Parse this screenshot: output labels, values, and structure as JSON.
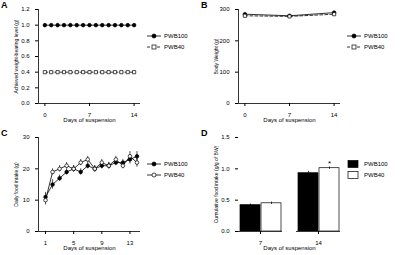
{
  "chart_data": [
    {
      "type": "line",
      "title": "A",
      "xlabel": "Days of suspension",
      "ylabel": "Achieved weight-bearing level (g)",
      "x": [
        0,
        1,
        2,
        3,
        4,
        5,
        6,
        7,
        8,
        9,
        10,
        11,
        12,
        13,
        14
      ],
      "xlim": [
        -1,
        15
      ],
      "xticks": [
        0,
        7,
        14
      ],
      "ylim": [
        0,
        1.2
      ],
      "yticks": [
        {
          "value": 0,
          "label": "0.0"
        },
        {
          "value": 0.2,
          "label": "0.2"
        },
        {
          "value": 0.4,
          "label": "0.4"
        },
        {
          "value": 0.6,
          "label": "0.6"
        },
        {
          "value": 0.8,
          "label": "0.8"
        },
        {
          "value": 1.0,
          "label": "1.0"
        },
        {
          "value": 1.2,
          "label": "1.2"
        }
      ],
      "series": [
        {
          "name": "PWB100",
          "color": "#000000",
          "marker": "circle",
          "line_style": "solid",
          "values": [
            1.0,
            1.0,
            1.0,
            1.0,
            1.0,
            1.0,
            1.0,
            1.0,
            1.0,
            1.0,
            1.0,
            1.0,
            1.0,
            1.0,
            1.0
          ]
        },
        {
          "name": "PWB40",
          "color": "#000000",
          "marker": "open-square",
          "line_style": "dashed",
          "values": [
            0.4,
            0.4,
            0.4,
            0.4,
            0.4,
            0.4,
            0.4,
            0.4,
            0.4,
            0.4,
            0.4,
            0.4,
            0.4,
            0.4,
            0.4
          ]
        }
      ]
    },
    {
      "type": "line",
      "title": "B",
      "xlabel": "Days of suspension",
      "ylabel": "Body Weight (g)",
      "x": [
        0,
        7,
        14
      ],
      "xlim": [
        -1,
        15
      ],
      "xticks": [
        0,
        7,
        14
      ],
      "ylim": [
        0,
        300
      ],
      "yticks": [
        0,
        100,
        200,
        300
      ],
      "series": [
        {
          "name": "PWB100",
          "color": "#000000",
          "marker": "circle",
          "line_style": "solid",
          "values": [
            285,
            280,
            290
          ]
        },
        {
          "name": "PWB40",
          "color": "#000000",
          "marker": "open-square",
          "line_style": "dashed",
          "values": [
            280,
            278,
            285
          ]
        }
      ]
    },
    {
      "type": "line",
      "title": "C",
      "xlabel": "Days of suspension",
      "ylabel": "Daily food intake (g)",
      "x": [
        1,
        2,
        3,
        4,
        5,
        6,
        7,
        8,
        9,
        10,
        11,
        12,
        13,
        14
      ],
      "xlim": [
        0,
        14.5
      ],
      "xticks": [
        1,
        5,
        9,
        13
      ],
      "ylim": [
        0,
        30
      ],
      "yticks": [
        0,
        10,
        20,
        30
      ],
      "series": [
        {
          "name": "PWB100",
          "color": "#000000",
          "marker": "circle",
          "line_style": "solid",
          "values": [
            11,
            15,
            17,
            19,
            20,
            19,
            21,
            20,
            21,
            21,
            22,
            22,
            23,
            24
          ],
          "errors": [
            1.5,
            1.5,
            1,
            1,
            1,
            1,
            1,
            1,
            1,
            1,
            1,
            1,
            1.5,
            1.5
          ]
        },
        {
          "name": "PWB40",
          "color": "#000000",
          "marker": "open-circle",
          "line_style": "solid",
          "values": [
            10,
            19,
            20,
            21,
            20,
            22,
            23,
            20,
            22,
            21,
            23,
            21,
            24,
            22
          ],
          "errors": [
            1.5,
            1,
            1,
            1,
            1,
            1,
            1,
            1,
            1,
            1,
            1,
            1,
            1.5,
            1.5
          ]
        }
      ]
    },
    {
      "type": "bar",
      "title": "D",
      "xlabel": "Days of suspension",
      "ylabel": "Cumulative food intake (g/g of BW)",
      "categories": [
        "7",
        "14"
      ],
      "ylim": [
        0,
        1.5
      ],
      "yticks": [
        {
          "value": 0,
          "label": "0.0"
        },
        {
          "value": 0.5,
          "label": "0.5"
        },
        {
          "value": 1.0,
          "label": "1.0"
        },
        {
          "value": 1.5,
          "label": "1.5"
        }
      ],
      "series": [
        {
          "name": "PWB100",
          "color": "#000000",
          "values": [
            0.42,
            0.93
          ],
          "errors": [
            0.02,
            0.03
          ]
        },
        {
          "name": "PWB40",
          "color": "#ffffff",
          "values": [
            0.45,
            1.01
          ],
          "errors": [
            0.02,
            0.02
          ]
        }
      ],
      "annotations": [
        {
          "text": "*",
          "category": "14",
          "series": "PWB40"
        }
      ]
    }
  ]
}
